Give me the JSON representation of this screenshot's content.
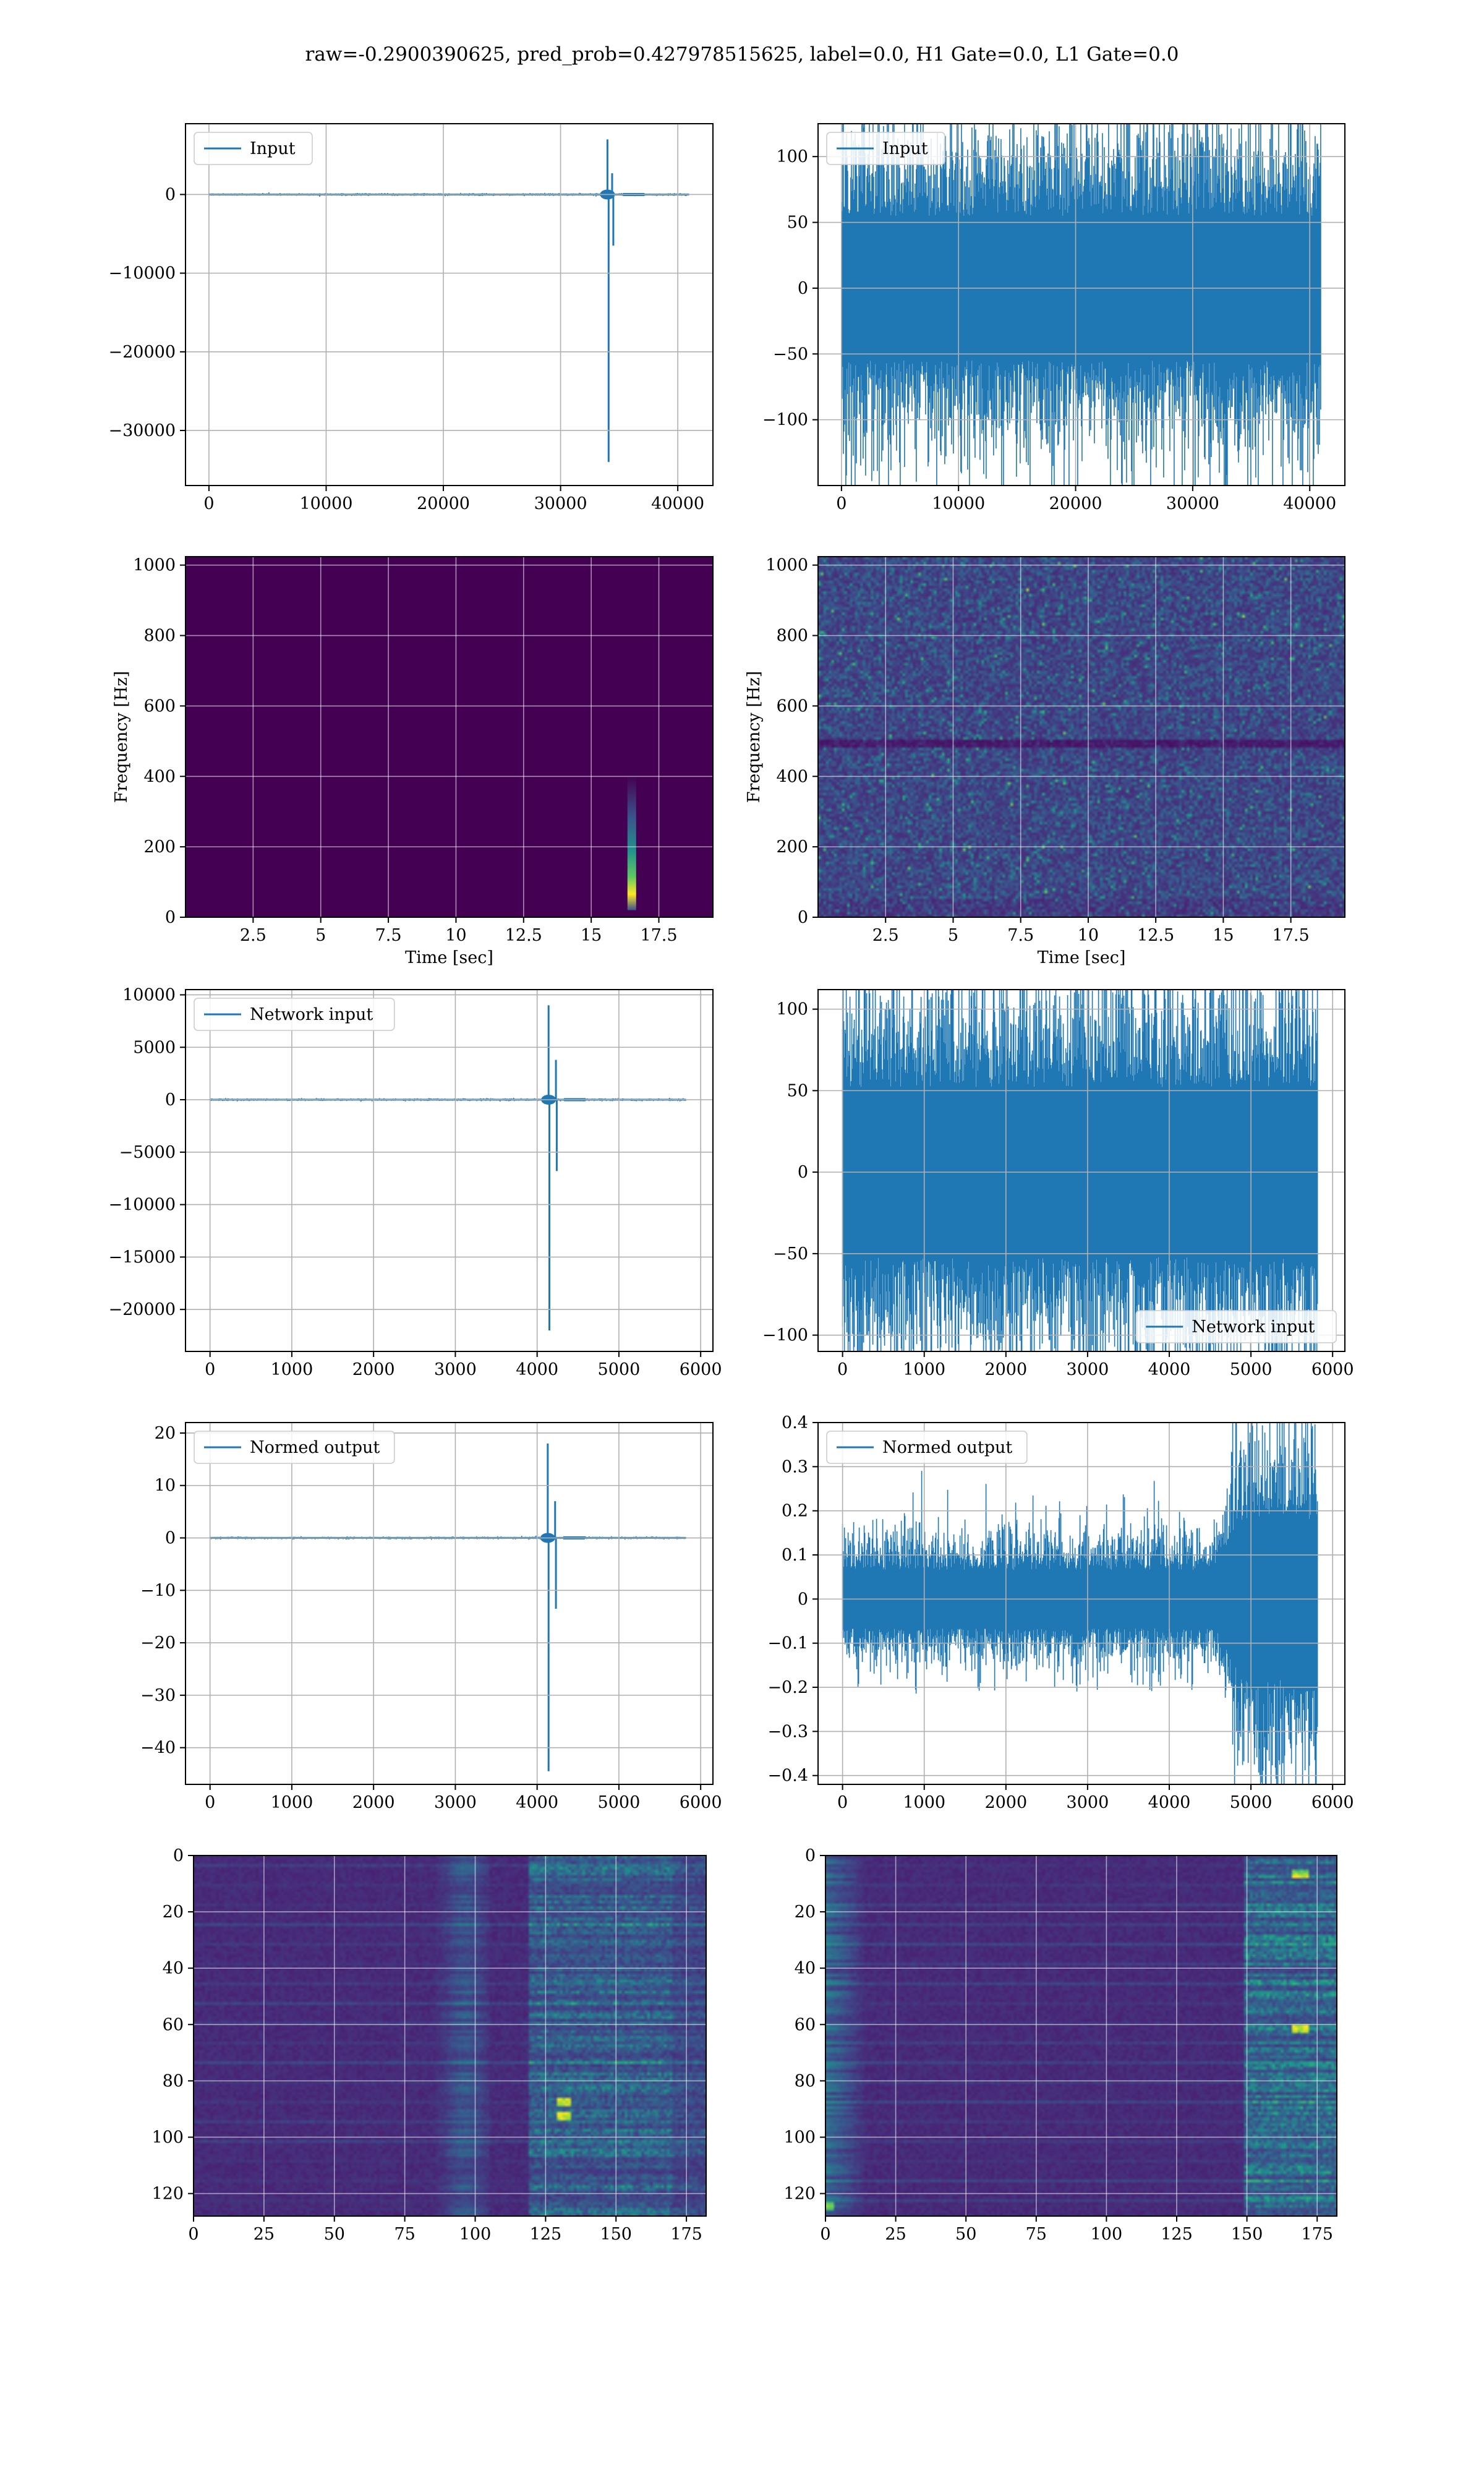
{
  "figure": {
    "suptitle": "raw=-0.2900390625, pred_prob=0.427978515625, label=0.0, H1 Gate=0.0, L1 Gate=0.0",
    "colors": {
      "line": "#1f77b4",
      "grid": "#b0b0b0",
      "viridis_dark": "#440154"
    }
  },
  "chart_data": [
    {
      "id": "input-left",
      "type": "line",
      "legend": "Input",
      "legend_loc": "upper-left",
      "xlim": [
        -2000,
        43000
      ],
      "ylim": [
        -37000,
        9000
      ],
      "xticks": [
        0,
        10000,
        20000,
        30000,
        40000
      ],
      "yticks": [
        0,
        -10000,
        -20000,
        -30000
      ],
      "grid": true,
      "series": [
        {
          "name": "Input",
          "n": 40960,
          "baseline": 0,
          "spikes": [
            {
              "x": 34000,
              "y": 7000
            },
            {
              "x": 34100,
              "y": -34000
            },
            {
              "x": 34400,
              "y": 2700
            },
            {
              "x": 34500,
              "y": -6500
            }
          ]
        }
      ]
    },
    {
      "id": "input-right",
      "type": "line",
      "legend": "Input",
      "legend_loc": "upper-left",
      "xlim": [
        -2000,
        43000
      ],
      "ylim": [
        -150,
        125
      ],
      "xticks": [
        0,
        10000,
        20000,
        30000,
        40000
      ],
      "yticks": [
        100,
        50,
        0,
        -50,
        -100
      ],
      "grid": true,
      "series": [
        {
          "name": "Input",
          "n": 40960,
          "amplitude": 100,
          "note": "stationary noise"
        }
      ]
    },
    {
      "id": "spec-left",
      "type": "heatmap",
      "xlabel": "Time [sec]",
      "ylabel": "Frequency [Hz]",
      "xlim": [
        0,
        19.5
      ],
      "ylim": [
        0,
        1024
      ],
      "xticks": [
        2.5,
        5.0,
        7.5,
        10.0,
        12.5,
        15.0,
        17.5
      ],
      "yticks": [
        0,
        200,
        400,
        600,
        800,
        1000
      ],
      "grid": true,
      "colormap": "viridis",
      "feature": {
        "t": 16.5,
        "f_range": [
          20,
          400
        ],
        "description": "localized glitch"
      }
    },
    {
      "id": "spec-right",
      "type": "heatmap",
      "xlabel": "Time [sec]",
      "ylabel": "Frequency [Hz]",
      "xlim": [
        0,
        19.5
      ],
      "ylim": [
        0,
        1024
      ],
      "xticks": [
        2.5,
        5.0,
        7.5,
        10.0,
        12.5,
        15.0,
        17.5
      ],
      "yticks": [
        0,
        200,
        400,
        600,
        800,
        1000
      ],
      "grid": true,
      "colormap": "viridis",
      "feature": {
        "description": "broadband noise, dark band near 490 Hz"
      }
    },
    {
      "id": "net-left",
      "type": "line",
      "legend": "Network input",
      "legend_loc": "upper-left",
      "xlim": [
        -300,
        6150
      ],
      "ylim": [
        -24000,
        10500
      ],
      "xticks": [
        0,
        1000,
        2000,
        3000,
        4000,
        5000,
        6000
      ],
      "yticks": [
        10000,
        5000,
        0,
        -5000,
        -10000,
        -15000,
        -20000
      ],
      "grid": true,
      "series": [
        {
          "name": "Network input",
          "n": 5820,
          "baseline": 0,
          "spikes": [
            {
              "x": 4140,
              "y": 9000
            },
            {
              "x": 4150,
              "y": -22000
            },
            {
              "x": 4230,
              "y": 3800
            },
            {
              "x": 4240,
              "y": -6800
            }
          ]
        }
      ]
    },
    {
      "id": "net-right",
      "type": "line",
      "legend": "Network input",
      "legend_loc": "lower-right",
      "xlim": [
        -300,
        6150
      ],
      "ylim": [
        -110,
        112
      ],
      "xticks": [
        0,
        1000,
        2000,
        3000,
        4000,
        5000,
        6000
      ],
      "yticks": [
        100,
        50,
        0,
        -50,
        -100
      ],
      "grid": true,
      "series": [
        {
          "name": "Network input",
          "n": 5820,
          "amplitude": 95
        }
      ]
    },
    {
      "id": "norm-left",
      "type": "line",
      "legend": "Normed output",
      "legend_loc": "upper-left",
      "xlim": [
        -300,
        6150
      ],
      "ylim": [
        -47,
        22
      ],
      "xticks": [
        0,
        1000,
        2000,
        3000,
        4000,
        5000,
        6000
      ],
      "yticks": [
        20,
        10,
        0,
        -10,
        -20,
        -30,
        -40
      ],
      "grid": true,
      "series": [
        {
          "name": "Normed output",
          "n": 5820,
          "baseline": 0,
          "spikes": [
            {
              "x": 4130,
              "y": 18
            },
            {
              "x": 4140,
              "y": -44.5
            },
            {
              "x": 4220,
              "y": 7
            },
            {
              "x": 4230,
              "y": -13.5
            }
          ]
        }
      ]
    },
    {
      "id": "norm-right",
      "type": "line",
      "legend": "Normed output",
      "legend_loc": "upper-left",
      "xlim": [
        -300,
        6150
      ],
      "ylim": [
        -0.42,
        0.4
      ],
      "xticks": [
        0,
        1000,
        2000,
        3000,
        4000,
        5000,
        6000
      ],
      "yticks": [
        0.4,
        0.3,
        0.2,
        0.1,
        0.0,
        -0.1,
        -0.2,
        -0.3,
        -0.4
      ],
      "grid": true,
      "series": [
        {
          "name": "Normed output",
          "n": 5820,
          "amplitude_before": 0.12,
          "amplitude_after": 0.33,
          "change_x": 4750
        }
      ]
    },
    {
      "id": "act-left",
      "type": "heatmap",
      "xlim": [
        0,
        182
      ],
      "ylim": [
        128,
        0
      ],
      "xticks": [
        0,
        25,
        50,
        75,
        100,
        125,
        150,
        175
      ],
      "yticks": [
        0,
        20,
        40,
        60,
        80,
        100,
        120
      ],
      "grid": true,
      "colormap": "viridis",
      "feature": {
        "hot_columns": [
          95,
          140
        ],
        "bright_at": [
          {
            "x": 131,
            "y": 87
          },
          {
            "x": 131,
            "y": 92
          }
        ]
      }
    },
    {
      "id": "act-right",
      "type": "heatmap",
      "xlim": [
        0,
        182
      ],
      "ylim": [
        128,
        0
      ],
      "xticks": [
        0,
        25,
        50,
        75,
        100,
        125,
        150,
        175
      ],
      "yticks": [
        0,
        20,
        40,
        60,
        80,
        100,
        120
      ],
      "grid": true,
      "colormap": "viridis",
      "feature": {
        "hot_columns": [
          0,
          12
        ],
        "edge_columns": [
          150,
          182
        ]
      }
    }
  ]
}
